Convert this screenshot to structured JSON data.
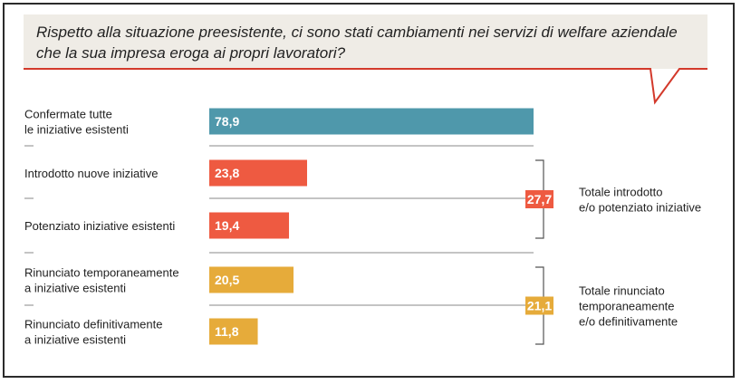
{
  "question": {
    "line1": "Rispetto alla situazione preesistente, ci sono stati cambiamenti nei servizi di welfare aziendale",
    "line2": "che la sua impresa eroga ai propri lavoratori?"
  },
  "chart_data": {
    "type": "bar",
    "orientation": "horizontal",
    "xlim": [
      0,
      78.9
    ],
    "categories": [
      [
        "Confermate tutte",
        "le iniziative esistenti"
      ],
      [
        "Introdotto nuove iniziative"
      ],
      [
        "Potenziato iniziative esistenti"
      ],
      [
        "Rinunciato temporaneamente",
        "a iniziative esistenti"
      ],
      [
        "Rinunciato definitivamente",
        "a iniziative esistenti"
      ]
    ],
    "values": [
      78.9,
      23.8,
      19.4,
      20.5,
      11.8
    ],
    "value_labels": [
      "78,9",
      "23,8",
      "19,4",
      "20,5",
      "11,8"
    ],
    "colors": [
      "#4f98ab",
      "#ee5a41",
      "#ee5a41",
      "#e6ab3a",
      "#e6ab3a"
    ],
    "groups": [
      {
        "value": 27.7,
        "value_label": "27,7",
        "color": "#ee5a41",
        "label": [
          "Totale introdotto",
          "e/o potenziato iniziative"
        ],
        "members": [
          1,
          2
        ]
      },
      {
        "value": 21.1,
        "value_label": "21,1",
        "color": "#e6ab3a",
        "label": [
          "Totale rinunciato",
          "temporaneamente",
          "e/o definitivamente"
        ],
        "members": [
          3,
          4
        ]
      }
    ]
  }
}
